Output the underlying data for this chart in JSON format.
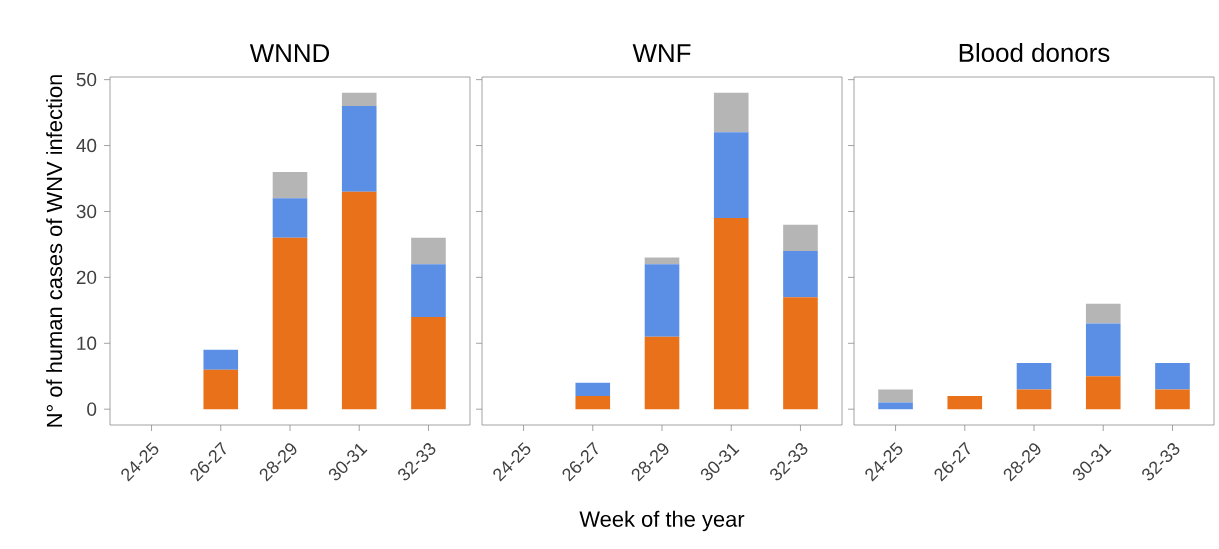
{
  "chart_data": [
    {
      "type": "bar",
      "title": "WNND",
      "ylabel": "N° of human cases of WNV infection",
      "stacked": true,
      "categories": [
        "24-25",
        "26-27",
        "28-29",
        "30-31",
        "32-33"
      ],
      "ylim": [
        -2.4,
        50.4
      ],
      "yticks": [
        0,
        10,
        20,
        30,
        40,
        50
      ],
      "series": [
        {
          "color": "#e8711a",
          "values": [
            0,
            6,
            26,
            33,
            14
          ]
        },
        {
          "color": "#5b8fe6",
          "values": [
            0,
            3,
            6,
            13,
            8
          ]
        },
        {
          "color": "#b5b5b5",
          "values": [
            0,
            0,
            4,
            2,
            4
          ]
        }
      ]
    },
    {
      "type": "bar",
      "title": "WNF",
      "xlabel": "Week of the year",
      "stacked": true,
      "categories": [
        "24-25",
        "26-27",
        "28-29",
        "30-31",
        "32-33"
      ],
      "ylim": [
        -2.4,
        50.4
      ],
      "yticks": [
        0,
        10,
        20,
        30,
        40,
        50
      ],
      "tick_labels": "x",
      "series": [
        {
          "color": "#e8711a",
          "values": [
            0,
            2,
            11,
            29,
            17
          ]
        },
        {
          "color": "#5b8fe6",
          "values": [
            0,
            2,
            11,
            13,
            7
          ]
        },
        {
          "color": "#b5b5b5",
          "values": [
            0,
            0,
            1,
            6,
            4
          ]
        }
      ]
    },
    {
      "type": "bar",
      "title": "Blood donors",
      "stacked": true,
      "categories": [
        "24-25",
        "26-27",
        "28-29",
        "30-31",
        "32-33"
      ],
      "ylim": [
        -2.4,
        50.4
      ],
      "yticks": [
        0,
        10,
        20,
        30,
        40,
        50
      ],
      "tick_labels": "x",
      "series": [
        {
          "color": "#e8711a",
          "values": [
            0,
            2,
            3,
            5,
            3
          ]
        },
        {
          "color": "#5b8fe6",
          "values": [
            1,
            0,
            4,
            8,
            4
          ]
        },
        {
          "color": "#b5b5b5",
          "values": [
            2,
            0,
            0,
            3,
            0
          ]
        }
      ]
    }
  ]
}
